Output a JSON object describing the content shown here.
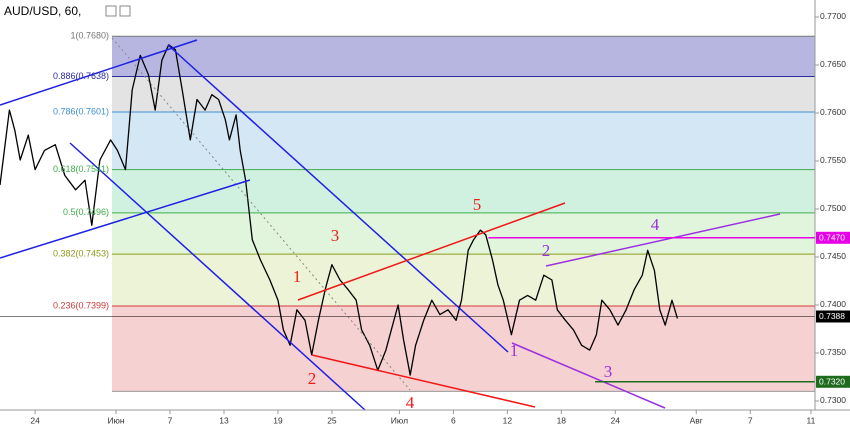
{
  "chart_data": {
    "type": "line",
    "title": "AUD/USD, 60,",
    "xlim": [
      -2.6,
      57.8
    ],
    "ylim": [
      0.72906,
      0.77177
    ],
    "xticks": [
      {
        "value": 0,
        "label": "24"
      },
      {
        "value": 6,
        "label": "Июн"
      },
      {
        "value": 10,
        "label": "7"
      },
      {
        "value": 14,
        "label": "13"
      },
      {
        "value": 18,
        "label": "19"
      },
      {
        "value": 22,
        "label": "25"
      },
      {
        "value": 27,
        "label": "Июл"
      },
      {
        "value": 31,
        "label": "6"
      },
      {
        "value": 35,
        "label": "12"
      },
      {
        "value": 39,
        "label": "18"
      },
      {
        "value": 43,
        "label": "24"
      },
      {
        "value": 49,
        "label": "Авг"
      },
      {
        "value": 53,
        "label": "7"
      },
      {
        "value": 57.5,
        "label": "11"
      }
    ],
    "yticks": [
      {
        "value": 0.77,
        "label": "0.7700"
      },
      {
        "value": 0.765,
        "label": "0.7650"
      },
      {
        "value": 0.76,
        "label": "0.7600"
      },
      {
        "value": 0.755,
        "label": "0.7550"
      },
      {
        "value": 0.75,
        "label": "0.7500"
      },
      {
        "value": 0.745,
        "label": "0.7450"
      },
      {
        "value": 0.74,
        "label": "0.7400"
      },
      {
        "value": 0.735,
        "label": "0.7350"
      },
      {
        "value": 0.73,
        "label": "0.7300"
      }
    ],
    "series": [
      {
        "color": "#000000",
        "x": [
          -2.6,
          -1.9,
          -1.5,
          -1.1,
          -0.5,
          0,
          0.7,
          1.5,
          2.2,
          3.0,
          3.7,
          4.2,
          4.8,
          5.6,
          6.1,
          6.7,
          7.2,
          7.8,
          8.4,
          8.9,
          9.4,
          9.9,
          10.4,
          10.9,
          11.5,
          12.0,
          12.6,
          13.1,
          13.6,
          14.1,
          14.4,
          14.9,
          15.2,
          15.6,
          16.1,
          16.7,
          17.4,
          18.0,
          18.4,
          18.9,
          19.4,
          20.0,
          20.5,
          21.0,
          21.5,
          22.0,
          22.6,
          23.2,
          23.8,
          24.2,
          24.8,
          25.4,
          26.0,
          26.4,
          26.9,
          27.3,
          27.8,
          28.2,
          28.8,
          29.4,
          30.0,
          30.6,
          31.2,
          31.6,
          32.1,
          32.5,
          33.0,
          33.4,
          33.9,
          34.3,
          34.7,
          35.3,
          35.9,
          36.5,
          37.1,
          37.7,
          38.3,
          38.7,
          39.3,
          39.9,
          40.5,
          41.1,
          41.6,
          42.0,
          42.6,
          43.2,
          43.8,
          44.4,
          45.0,
          45.4,
          45.9,
          46.3,
          46.7,
          47.2,
          47.6
        ],
        "values": [
          0.7525,
          0.7603,
          0.7582,
          0.7551,
          0.7577,
          0.7541,
          0.7561,
          0.7567,
          0.7535,
          0.752,
          0.753,
          0.7483,
          0.7551,
          0.7572,
          0.7561,
          0.7541,
          0.7624,
          0.766,
          0.764,
          0.7603,
          0.7655,
          0.7671,
          0.7666,
          0.7624,
          0.7572,
          0.7614,
          0.7603,
          0.7619,
          0.7614,
          0.7593,
          0.7572,
          0.7598,
          0.7561,
          0.753,
          0.7468,
          0.7447,
          0.7426,
          0.7405,
          0.7374,
          0.7358,
          0.7395,
          0.7384,
          0.7348,
          0.7384,
          0.7416,
          0.7442,
          0.7426,
          0.7416,
          0.7405,
          0.7374,
          0.7358,
          0.7332,
          0.7353,
          0.7374,
          0.74,
          0.7364,
          0.7327,
          0.7358,
          0.7384,
          0.7405,
          0.739,
          0.7395,
          0.7384,
          0.7405,
          0.7457,
          0.7468,
          0.7478,
          0.7473,
          0.7447,
          0.7421,
          0.7405,
          0.7369,
          0.7405,
          0.741,
          0.7405,
          0.7431,
          0.7426,
          0.7395,
          0.7384,
          0.7374,
          0.7358,
          0.7353,
          0.7369,
          0.7405,
          0.7395,
          0.7379,
          0.7395,
          0.7416,
          0.7431,
          0.7457,
          0.7436,
          0.7395,
          0.7379,
          0.7405,
          0.7386
        ]
      }
    ],
    "fib_levels": [
      {
        "value": 0.768,
        "label": "1(0.7680)",
        "color": "#787878",
        "fill": "#a9a9dc"
      },
      {
        "value": 0.7638,
        "label": "0.886(0.7638)",
        "color": "#2b2ba0",
        "fill": "#dedede"
      },
      {
        "value": 0.7601,
        "label": "0.786(0.7601)",
        "color": "#3d8fd1",
        "fill": "#cde3f3"
      },
      {
        "value": 0.7541,
        "label": "0.618(0.7541)",
        "color": "#3fae4a",
        "fill": "#c9efda"
      },
      {
        "value": 0.7496,
        "label": "0.5(0.7496)",
        "color": "#3fae4a",
        "fill": "#dcf3d6"
      },
      {
        "value": 0.7453,
        "label": "0.382(0.7453)",
        "color": "#8c9a1c",
        "fill": "#eaf1cf"
      },
      {
        "value": 0.7399,
        "label": "0.236(0.7399)",
        "color": "#d23b3b",
        "fill": "#f3c9c9"
      },
      {
        "value": 0.731,
        "color": "#999999"
      }
    ],
    "price_lines": [
      {
        "value": 0.747,
        "label": "0.7470",
        "color": "#e600e6",
        "start": 33.6
      },
      {
        "value": 0.7388,
        "label": "0.7388",
        "color": "#000000",
        "start": -2.6
      },
      {
        "value": 0.732,
        "label": "0.7320",
        "color": "#1e6b1e",
        "start": 41.5
      }
    ],
    "wave_labels_red": [
      "1",
      "2",
      "3",
      "4",
      "5"
    ],
    "wave_labels_purple": [
      "1",
      "2",
      "3",
      "4"
    ]
  }
}
